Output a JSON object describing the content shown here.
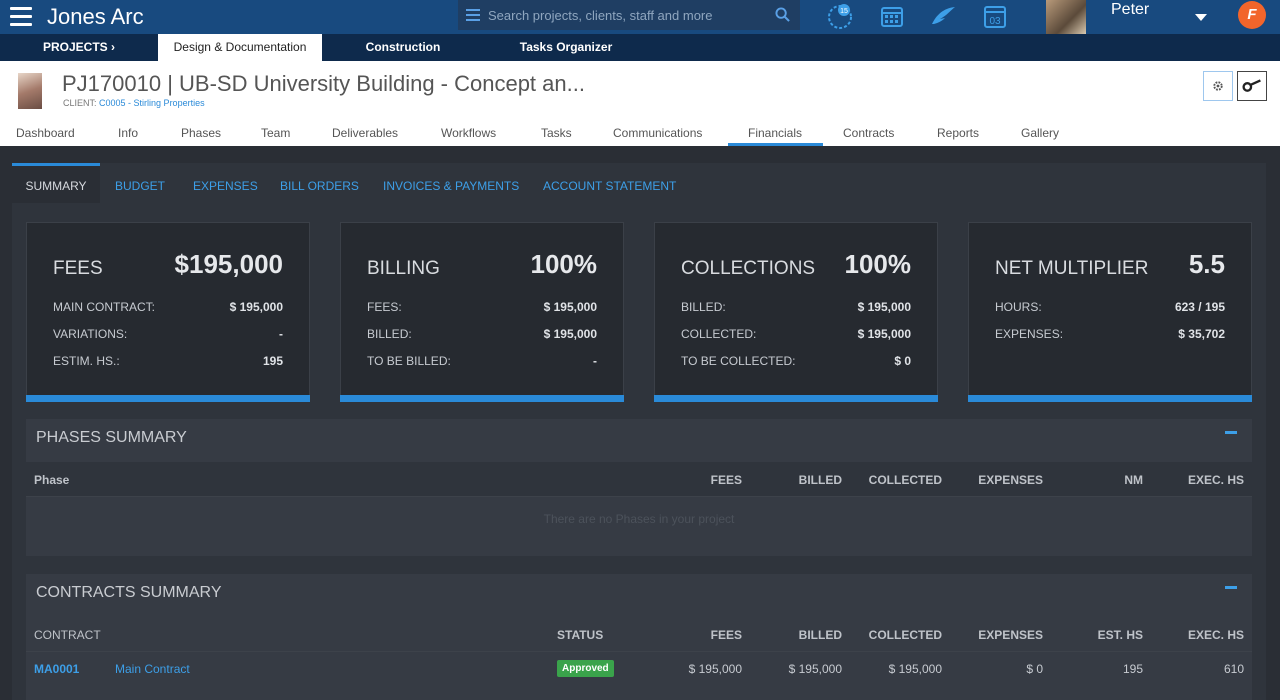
{
  "app": {
    "brand": "Jones Arc",
    "search_placeholder": "Search projects, clients, staff and more",
    "user_name": "Peter",
    "notif_letter": "F",
    "calendar_day": "03",
    "clock_badge": "15"
  },
  "project_tabs": {
    "projects": "PROJECTS ›",
    "active": "Design & Documentation",
    "construction": "Construction",
    "tasks": "Tasks Organizer"
  },
  "project": {
    "title": "PJ170010 | UB-SD University Building - Concept an...",
    "client_label": "CLIENT:",
    "client_value": "C0005 - Stirling Properties"
  },
  "nav": [
    "Dashboard",
    "Info",
    "Phases",
    "Team",
    "Deliverables",
    "Workflows",
    "Tasks",
    "Communications",
    "Financials",
    "Contracts",
    "Reports",
    "Gallery"
  ],
  "subtabs": [
    "SUMMARY",
    "BUDGET",
    "EXPENSES",
    "BILL ORDERS",
    "INVOICES & PAYMENTS",
    "ACCOUNT STATEMENT"
  ],
  "cards": [
    {
      "title": "FEES",
      "big": "$195,000",
      "rows": [
        [
          "MAIN CONTRACT:",
          "$ 195,000"
        ],
        [
          "VARIATIONS:",
          "-"
        ],
        [
          "ESTIM. HS.:",
          "195"
        ]
      ]
    },
    {
      "title": "BILLING",
      "big": "100%",
      "rows": [
        [
          "FEES:",
          "$ 195,000"
        ],
        [
          "BILLED:",
          "$ 195,000"
        ],
        [
          "TO BE BILLED:",
          "-"
        ]
      ]
    },
    {
      "title": "COLLECTIONS",
      "big": "100%",
      "rows": [
        [
          "BILLED:",
          "$ 195,000"
        ],
        [
          "COLLECTED:",
          "$ 195,000"
        ],
        [
          "TO BE COLLECTED:",
          "$ 0"
        ]
      ]
    },
    {
      "title": "NET MULTIPLIER",
      "big": "5.5",
      "rows": [
        [
          "HOURS:",
          "623 / 195"
        ],
        [
          "EXPENSES:",
          "$ 35,702"
        ]
      ]
    }
  ],
  "phases": {
    "title": "PHASES SUMMARY",
    "headers": [
      "Phase",
      "FEES",
      "BILLED",
      "COLLECTED",
      "EXPENSES",
      "NM",
      "EXEC. HS"
    ],
    "empty": "There are no Phases in your project"
  },
  "contracts": {
    "title": "CONTRACTS SUMMARY",
    "headers": [
      "CONTRACT",
      "STATUS",
      "FEES",
      "BILLED",
      "COLLECTED",
      "EXPENSES",
      "EST. HS",
      "EXEC. HS"
    ],
    "rows": [
      {
        "code": "MA0001",
        "name": "Main Contract",
        "status": "Approved",
        "fees": "$ 195,000",
        "billed": "$ 195,000",
        "collected": "$ 195,000",
        "expenses": "$ 0",
        "est": "195",
        "exec": "610"
      }
    ]
  },
  "colors": {
    "accent": "#2a8ad8",
    "topbar": "#184a7f",
    "approved": "#3aa34b"
  }
}
